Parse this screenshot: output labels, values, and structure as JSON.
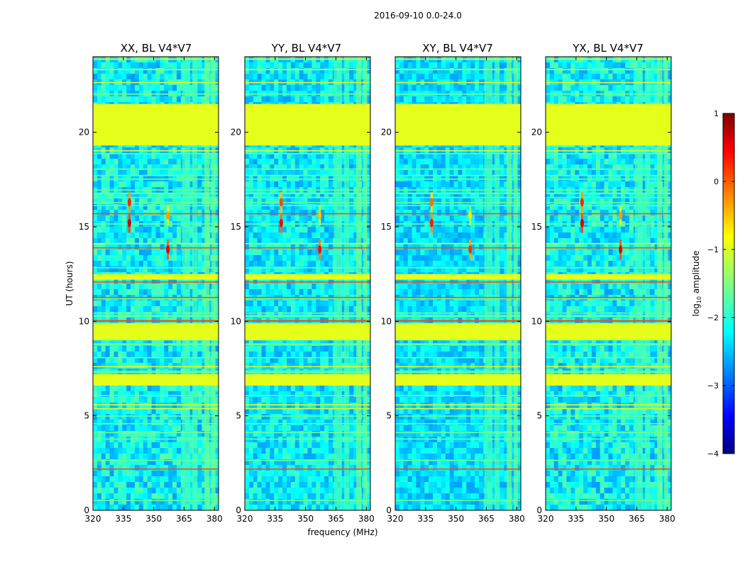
{
  "chart_data": {
    "type": "heatmap",
    "suptitle": "2016-09-10 0.0-24.0",
    "xlabel": "frequency (MHz)",
    "ylabel": "UT (hours)",
    "xlim": [
      320,
      382
    ],
    "ylim": [
      0,
      24
    ],
    "x_ticks": [
      320,
      335,
      350,
      365,
      380
    ],
    "y_ticks": [
      0,
      5,
      10,
      15,
      20
    ],
    "colormap": "jet",
    "colorbar": {
      "label": "log10 amplitude",
      "label_base": "log",
      "label_sub": "10",
      "label_rest": " amplitude",
      "range": [
        -4,
        1
      ],
      "ticks": [
        "1",
        "0",
        "−1",
        "−2",
        "−3",
        "−4"
      ],
      "tick_values": [
        1,
        0,
        -1,
        -2,
        -3,
        -4
      ]
    },
    "panels": [
      {
        "title": "XX, BL V4*V7",
        "level": 1.0
      },
      {
        "title": "YY, BL V4*V7",
        "level": 0.85
      },
      {
        "title": "XY, BL V4*V7",
        "level": 0.7
      },
      {
        "title": "YX, BL V4*V7",
        "level": 1.0
      }
    ],
    "flagged_time_bands_hours": [
      [
        19.3,
        21.5
      ],
      [
        9.0,
        9.9
      ],
      [
        12.2,
        12.5
      ],
      [
        6.6,
        7.2
      ]
    ],
    "rfi_frequency_bands_mhz": [
      [
        364,
        368
      ],
      [
        369,
        371.5
      ],
      [
        375,
        377.5
      ],
      [
        378.5,
        380.5
      ]
    ],
    "bright_spots": [
      {
        "freq_mhz": 338,
        "ut_hours": 15.2,
        "log_amp": 0.6
      },
      {
        "freq_mhz": 338,
        "ut_hours": 16.3,
        "log_amp": 0.2
      },
      {
        "freq_mhz": 357,
        "ut_hours": 13.8,
        "log_amp": 0.5
      },
      {
        "freq_mhz": 357,
        "ut_hours": 15.6,
        "log_amp": -0.4
      }
    ]
  }
}
